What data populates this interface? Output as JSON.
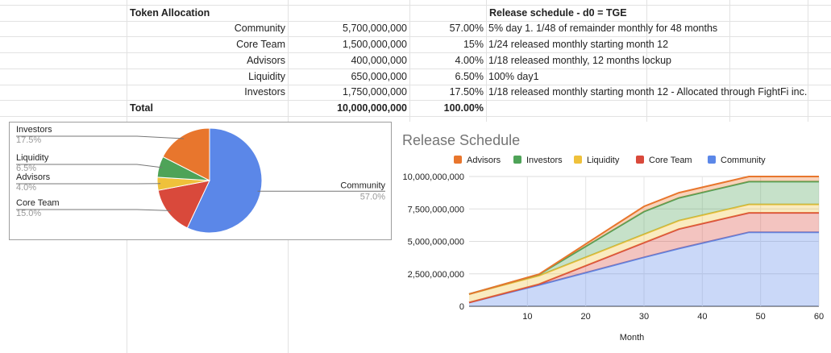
{
  "sheet": {
    "header": {
      "allocation_title": "Token Allocation",
      "schedule_title": "Release schedule - d0 = TGE"
    },
    "rows": [
      {
        "name": "Community",
        "amount": "5,700,000,000",
        "pct": "57.00%",
        "schedule": "5% day 1. 1/48 of remainder monthly for 48 months"
      },
      {
        "name": "Core Team",
        "amount": "1,500,000,000",
        "pct": "15%",
        "schedule": "1/24 released monthly starting month 12"
      },
      {
        "name": "Advisors",
        "amount": "400,000,000",
        "pct": "4.00%",
        "schedule": "1/18 released monthly, 12 months lockup"
      },
      {
        "name": "Liquidity",
        "amount": "650,000,000",
        "pct": "6.50%",
        "schedule": "100% day1"
      },
      {
        "name": "Investors",
        "amount": "1,750,000,000",
        "pct": "17.50%",
        "schedule": "1/18 released monthly starting month 12 - Allocated through FightFi inc."
      }
    ],
    "total": {
      "label": "Total",
      "amount": "10,000,000,000",
      "pct": "100.00%"
    }
  },
  "chart_data": [
    {
      "type": "pie",
      "slices": [
        {
          "label": "Community",
          "pct_text": "57.0%",
          "value": 57.0,
          "color": "#5b87e8"
        },
        {
          "label": "Core Team",
          "pct_text": "15.0%",
          "value": 15.0,
          "color": "#d9493b"
        },
        {
          "label": "Advisors",
          "pct_text": "4.0%",
          "value": 4.0,
          "color": "#efc13b"
        },
        {
          "label": "Liquidity",
          "pct_text": "6.5%",
          "value": 6.5,
          "color": "#4ea358"
        },
        {
          "label": "Investors",
          "pct_text": "17.5%",
          "value": 17.5,
          "color": "#e8762d"
        }
      ]
    },
    {
      "type": "area",
      "stacked": true,
      "title": "Release Schedule",
      "xlabel": "Month",
      "ylabel": "",
      "xlim": [
        0,
        60
      ],
      "ylim": [
        0,
        10000000000
      ],
      "xticks": [
        10,
        20,
        30,
        40,
        50,
        60
      ],
      "yticks": [
        0,
        2500000000,
        5000000000,
        7500000000,
        10000000000
      ],
      "ytick_labels": [
        "0",
        "2,500,000,000",
        "5,000,000,000",
        "7,500,000,000",
        "10,000,000,000"
      ],
      "legend_position": "top",
      "legend": [
        {
          "name": "Advisors",
          "color": "#e8762d"
        },
        {
          "name": "Investors",
          "color": "#4ea358"
        },
        {
          "name": "Liquidity",
          "color": "#efc13b"
        },
        {
          "name": "Core Team",
          "color": "#d9493b"
        },
        {
          "name": "Community",
          "color": "#5b87e8"
        }
      ],
      "x": [
        0,
        12,
        30,
        36,
        48,
        60
      ],
      "series": [
        {
          "name": "Community",
          "color": "#5b87e8",
          "values": [
            285000000,
            1638750000,
            3768750000,
            4450000000,
            5700000000,
            5700000000
          ]
        },
        {
          "name": "Core Team",
          "color": "#d9493b",
          "values": [
            0,
            62500000,
            1125000000,
            1500000000,
            1500000000,
            1500000000
          ]
        },
        {
          "name": "Liquidity",
          "color": "#efc13b",
          "values": [
            650000000,
            650000000,
            650000000,
            650000000,
            650000000,
            650000000
          ]
        },
        {
          "name": "Investors",
          "color": "#4ea358",
          "values": [
            0,
            100000000,
            1750000000,
            1750000000,
            1750000000,
            1750000000
          ]
        },
        {
          "name": "Advisors",
          "color": "#e8762d",
          "values": [
            0,
            20000000,
            400000000,
            400000000,
            400000000,
            400000000
          ]
        }
      ]
    }
  ]
}
